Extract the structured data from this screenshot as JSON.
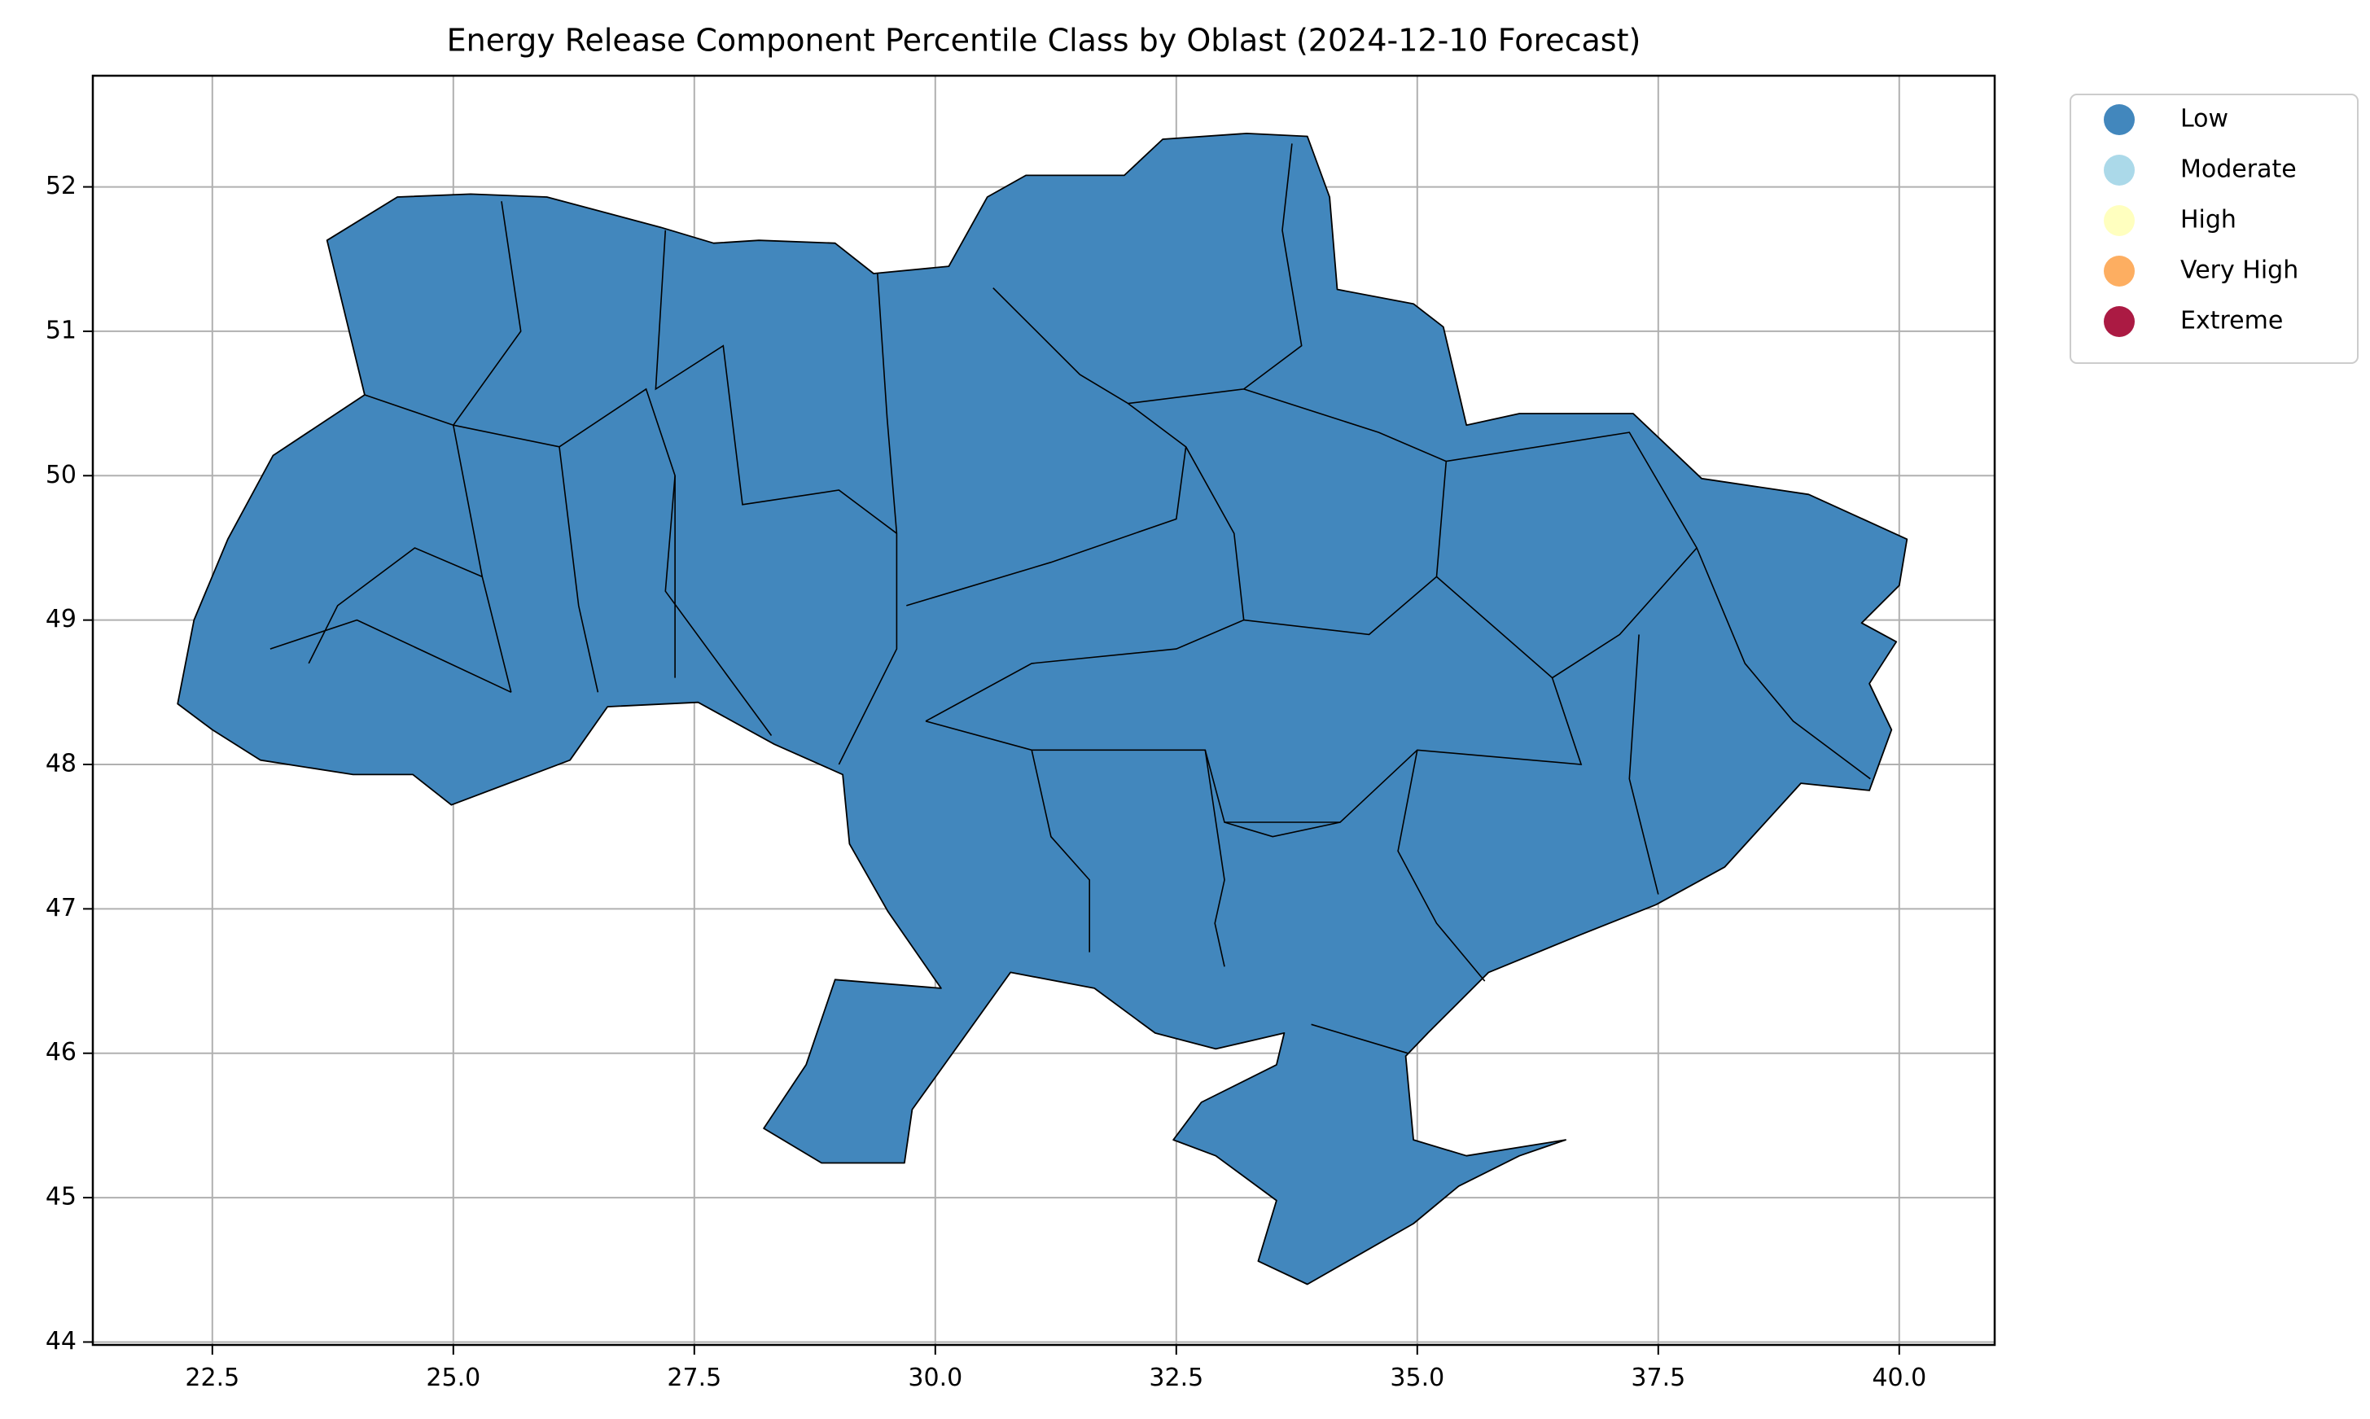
{
  "chart_data": {
    "type": "choropleth",
    "title": "Energy Release Component Percentile Class by Oblast (2024-12-10 Forecast)",
    "xlim": [
      21.26,
      40.99
    ],
    "ylim": [
      43.98,
      52.77
    ],
    "xticks": [
      22.5,
      {
        "value": 25,
        "label": "25.0"
      },
      27.5,
      {
        "value": 30,
        "label": "30.0"
      },
      32.5,
      {
        "value": 35,
        "label": "35.0"
      },
      37.5,
      {
        "value": 40,
        "label": "40.0"
      }
    ],
    "yticks": [
      44,
      45,
      46,
      47,
      48,
      49,
      50,
      51,
      52
    ],
    "grid": true,
    "legend_position": "outside-upper-right",
    "legend": [
      {
        "label": "Low",
        "color": "#4287bd"
      },
      {
        "label": "Moderate",
        "color": "#abd9e9"
      },
      {
        "label": "High",
        "color": "#ffffbf"
      },
      {
        "label": "Very High",
        "color": "#fdae61"
      },
      {
        "label": "Extreme",
        "color": "#ab1a43"
      }
    ]
  }
}
